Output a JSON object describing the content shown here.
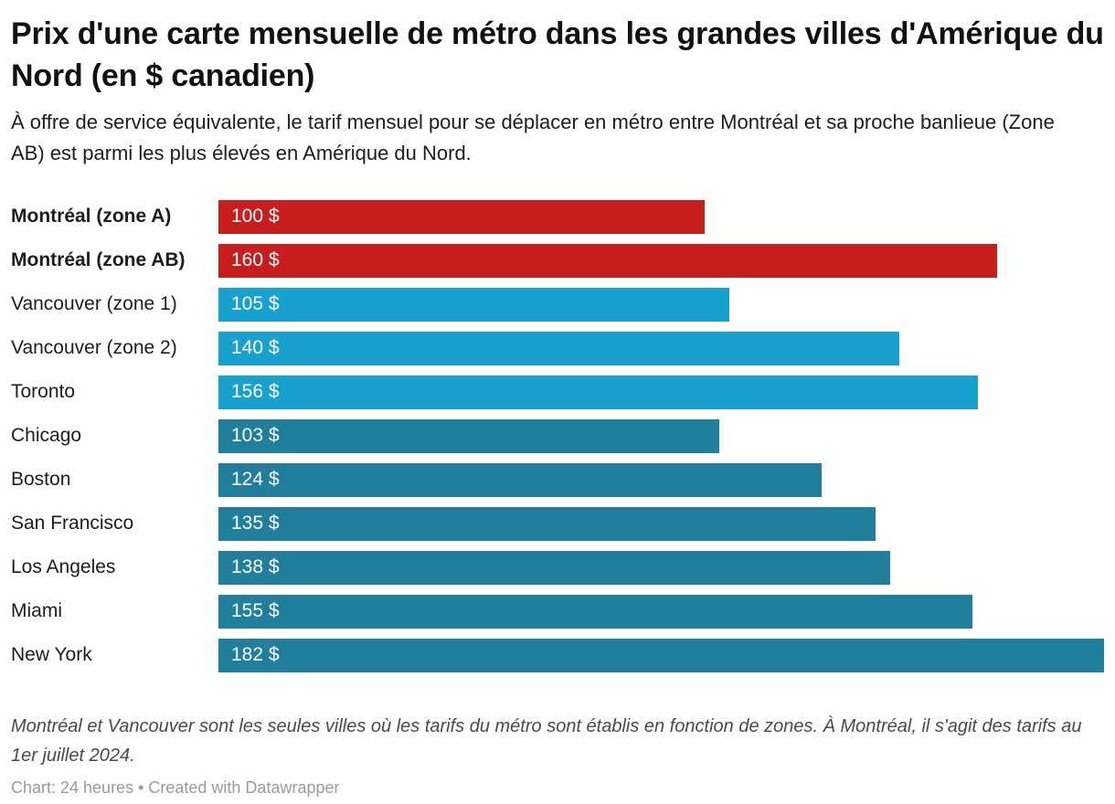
{
  "chart_data": {
    "type": "bar",
    "orientation": "horizontal",
    "title": "Prix d'une carte mensuelle de métro dans les grandes villes d'Amérique du Nord (en $ canadien)",
    "subtitle": "À offre de service équivalente, le tarif mensuel pour se déplacer en métro entre Montréal et sa proche banlieue (Zone AB) est parmi les plus élevés en Amérique du Nord.",
    "xlabel": "",
    "ylabel": "",
    "xlim": [
      0,
      182
    ],
    "xmax": 182,
    "grid": false,
    "legend": false,
    "value_label_position": "inside-start",
    "value_suffix": " $",
    "palette": {
      "montreal_red": "#c71e1d",
      "canada_light_blue": "#18a0ce",
      "us_dark_blue": "#1f7f9c"
    },
    "categories": [
      "Montréal (zone A)",
      "Montréal (zone AB)",
      "Vancouver (zone 1)",
      "Vancouver (zone 2)",
      "Toronto",
      "Chicago",
      "Boston",
      "San Francisco",
      "Los Angeles",
      "Miami",
      "New York"
    ],
    "values": [
      100,
      160,
      105,
      140,
      156,
      103,
      124,
      135,
      138,
      155,
      182
    ],
    "rows": [
      {
        "label": "Montréal (zone A)",
        "value": 100,
        "display_value": "100 $",
        "color": "montreal_red",
        "bold": true
      },
      {
        "label": "Montréal (zone AB)",
        "value": 160,
        "display_value": "160 $",
        "color": "montreal_red",
        "bold": true
      },
      {
        "label": "Vancouver (zone 1)",
        "value": 105,
        "display_value": "105 $",
        "color": "canada_light_blue",
        "bold": false
      },
      {
        "label": "Vancouver (zone 2)",
        "value": 140,
        "display_value": "140 $",
        "color": "canada_light_blue",
        "bold": false
      },
      {
        "label": "Toronto",
        "value": 156,
        "display_value": "156 $",
        "color": "canada_light_blue",
        "bold": false
      },
      {
        "label": "Chicago",
        "value": 103,
        "display_value": "103 $",
        "color": "us_dark_blue",
        "bold": false
      },
      {
        "label": "Boston",
        "value": 124,
        "display_value": "124 $",
        "color": "us_dark_blue",
        "bold": false
      },
      {
        "label": "San Francisco",
        "value": 135,
        "display_value": "135 $",
        "color": "us_dark_blue",
        "bold": false
      },
      {
        "label": "Los Angeles",
        "value": 138,
        "display_value": "138 $",
        "color": "us_dark_blue",
        "bold": false
      },
      {
        "label": "Miami",
        "value": 155,
        "display_value": "155 $",
        "color": "us_dark_blue",
        "bold": false
      },
      {
        "label": "New York",
        "value": 182,
        "display_value": "182 $",
        "color": "us_dark_blue",
        "bold": false
      }
    ]
  },
  "footer": {
    "note": "Montréal et Vancouver sont les seules villes où les tarifs du métro sont établis en fonction de zones. À Montréal, il s'agit des tarifs au 1er juillet 2024.",
    "byline": "Chart: 24 heures • Created with Datawrapper"
  }
}
